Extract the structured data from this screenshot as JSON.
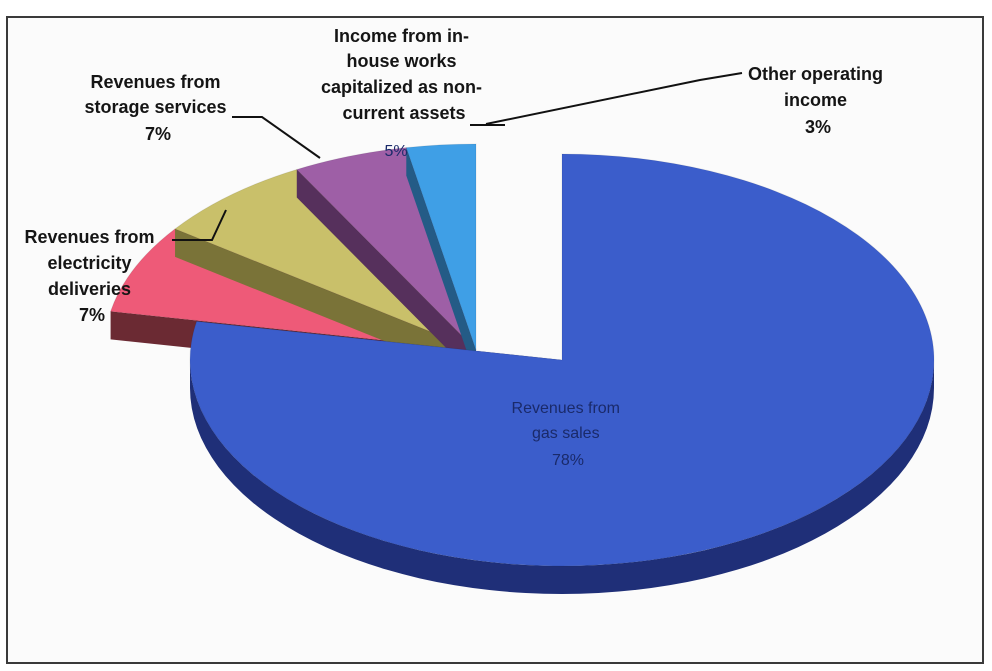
{
  "chart_data": {
    "type": "pie",
    "title": "",
    "slices": [
      {
        "label": "Revenues from gas sales",
        "value": 78,
        "value_label": "78%",
        "color": "#3b5dcb",
        "side_color": "#1f2f78"
      },
      {
        "label": "Revenues from electricity deliveries",
        "value": 7,
        "value_label": "7%",
        "color": "#ee5a78",
        "side_color": "#6b2a33"
      },
      {
        "label": "Revenues from storage services",
        "value": 7,
        "value_label": "7%",
        "color": "#c9c06a",
        "side_color": "#7a7338"
      },
      {
        "label": "Income from in-house works capitalized as non-current assets",
        "value": 5,
        "value_label": "5%",
        "color": "#9e5fa6",
        "side_color": "#56305c"
      },
      {
        "label": "Other operating income",
        "value": 3,
        "value_label": "3%",
        "color": "#3f9fe6",
        "side_color": "#245b86"
      }
    ],
    "labels": {
      "gas": [
        "Revenues from",
        "gas sales",
        "78%"
      ],
      "electricity": [
        "Revenues from",
        "electricity",
        "deliveries",
        "7%"
      ],
      "storage": [
        "Revenues from",
        "storage services",
        "7%"
      ],
      "inhouse": [
        "Income from in-",
        "house works",
        "capitalized as non-",
        "current assets",
        "5%"
      ],
      "other": [
        "Other operating",
        "income",
        "3%"
      ]
    },
    "style": "3d-exploded"
  }
}
